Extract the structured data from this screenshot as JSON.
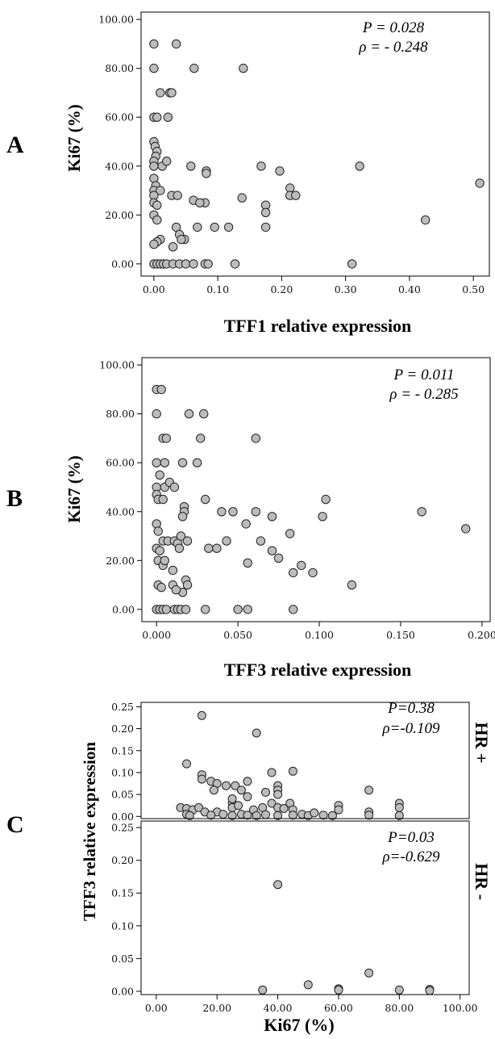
{
  "chart_data": [
    {
      "id": "A",
      "type": "scatter",
      "panel_label": "A",
      "xlabel": "TFF1 relative expression",
      "ylabel": "Ki67 (%)",
      "stat_p": "P = 0.028",
      "stat_rho": "ρ = - 0.248",
      "xlim": [
        -0.02,
        0.525
      ],
      "ylim": [
        -5,
        103
      ],
      "xticks": [
        0.0,
        0.1,
        0.2,
        0.3,
        0.4,
        0.5
      ],
      "xtick_labels": [
        "0.00",
        "0.10",
        "0.20",
        "0.30",
        "0.40",
        "0.50"
      ],
      "yticks": [
        0,
        20,
        40,
        60,
        80,
        100
      ],
      "ytick_labels": [
        "0.00",
        "20.00",
        "40.00",
        "60.00",
        "80.00",
        "100.00"
      ],
      "points": [
        [
          0.0,
          90
        ],
        [
          0.035,
          90
        ],
        [
          0.0,
          80
        ],
        [
          0.063,
          80
        ],
        [
          0.14,
          80
        ],
        [
          0.01,
          70
        ],
        [
          0.025,
          70
        ],
        [
          0.028,
          70
        ],
        [
          0.0,
          60
        ],
        [
          0.005,
          60
        ],
        [
          0.022,
          60
        ],
        [
          0.0,
          50
        ],
        [
          0.002,
          48
        ],
        [
          0.005,
          46
        ],
        [
          0.003,
          44
        ],
        [
          0.0,
          42
        ],
        [
          0.0,
          40
        ],
        [
          0.013,
          40
        ],
        [
          0.02,
          42
        ],
        [
          0.058,
          40
        ],
        [
          0.082,
          38
        ],
        [
          0.082,
          37
        ],
        [
          0.168,
          40
        ],
        [
          0.197,
          38
        ],
        [
          0.322,
          40
        ],
        [
          0.0,
          35
        ],
        [
          0.003,
          32
        ],
        [
          0.0,
          30
        ],
        [
          0.01,
          30
        ],
        [
          0.0,
          28
        ],
        [
          0.028,
          28
        ],
        [
          0.037,
          28
        ],
        [
          0.08,
          25
        ],
        [
          0.062,
          26
        ],
        [
          0.072,
          25
        ],
        [
          0.138,
          27
        ],
        [
          0.213,
          31
        ],
        [
          0.213,
          28
        ],
        [
          0.222,
          28
        ],
        [
          0.51,
          33
        ],
        [
          0.0,
          25
        ],
        [
          0.005,
          24
        ],
        [
          0.0,
          20
        ],
        [
          0.005,
          18
        ],
        [
          0.035,
          15
        ],
        [
          0.068,
          15
        ],
        [
          0.095,
          15
        ],
        [
          0.117,
          15
        ],
        [
          0.175,
          24
        ],
        [
          0.175,
          21
        ],
        [
          0.175,
          15
        ],
        [
          0.425,
          18
        ],
        [
          0.04,
          12
        ],
        [
          0.048,
          10
        ],
        [
          0.043,
          10
        ],
        [
          0.01,
          10
        ],
        [
          0.005,
          9
        ],
        [
          0.0,
          8
        ],
        [
          0.03,
          7
        ],
        [
          0.0,
          0
        ],
        [
          0.005,
          0
        ],
        [
          0.01,
          0
        ],
        [
          0.015,
          0
        ],
        [
          0.02,
          0
        ],
        [
          0.03,
          0
        ],
        [
          0.04,
          0
        ],
        [
          0.05,
          0
        ],
        [
          0.062,
          0
        ],
        [
          0.08,
          0
        ],
        [
          0.085,
          0
        ],
        [
          0.127,
          0
        ],
        [
          0.31,
          0
        ]
      ]
    },
    {
      "id": "B",
      "type": "scatter",
      "panel_label": "B",
      "xlabel": "TFF3 relative expression",
      "ylabel": "Ki67 (%)",
      "stat_p": "P = 0.011",
      "stat_rho": "ρ = - 0.285",
      "xlim": [
        -0.009,
        0.205
      ],
      "ylim": [
        -5,
        103
      ],
      "xticks": [
        0.0,
        0.05,
        0.1,
        0.15,
        0.2
      ],
      "xtick_labels": [
        "0.000",
        "0.050",
        "0.100",
        "0.150",
        "0.200"
      ],
      "yticks": [
        0,
        20,
        40,
        60,
        80,
        100
      ],
      "ytick_labels": [
        "0.00",
        "20.00",
        "40.00",
        "60.00",
        "80.00",
        "100.00"
      ],
      "points": [
        [
          0.0,
          90
        ],
        [
          0.003,
          90
        ],
        [
          0.0,
          80
        ],
        [
          0.02,
          80
        ],
        [
          0.029,
          80
        ],
        [
          0.004,
          70
        ],
        [
          0.006,
          70
        ],
        [
          0.027,
          70
        ],
        [
          0.061,
          70
        ],
        [
          0.0,
          60
        ],
        [
          0.005,
          60
        ],
        [
          0.016,
          60
        ],
        [
          0.025,
          60
        ],
        [
          0.0,
          50
        ],
        [
          0.005,
          50
        ],
        [
          0.008,
          52
        ],
        [
          0.011,
          50
        ],
        [
          0.002,
          55
        ],
        [
          0.0,
          47
        ],
        [
          0.001,
          45
        ],
        [
          0.004,
          45
        ],
        [
          0.017,
          42
        ],
        [
          0.017,
          40
        ],
        [
          0.016,
          38
        ],
        [
          0.03,
          45
        ],
        [
          0.04,
          40
        ],
        [
          0.047,
          40
        ],
        [
          0.061,
          40
        ],
        [
          0.071,
          38
        ],
        [
          0.082,
          31
        ],
        [
          0.102,
          38
        ],
        [
          0.104,
          45
        ],
        [
          0.163,
          40
        ],
        [
          0.19,
          33
        ],
        [
          0.0,
          35
        ],
        [
          0.001,
          32
        ],
        [
          0.004,
          28
        ],
        [
          0.007,
          28
        ],
        [
          0.011,
          28
        ],
        [
          0.013,
          27
        ],
        [
          0.015,
          30
        ],
        [
          0.019,
          28
        ],
        [
          0.014,
          25
        ],
        [
          0.032,
          25
        ],
        [
          0.037,
          25
        ],
        [
          0.043,
          28
        ],
        [
          0.055,
          35
        ],
        [
          0.064,
          28
        ],
        [
          0.071,
          24
        ],
        [
          0.075,
          21
        ],
        [
          0.056,
          19
        ],
        [
          0.0,
          25
        ],
        [
          0.002,
          24
        ],
        [
          0.001,
          20
        ],
        [
          0.004,
          18
        ],
        [
          0.005,
          20
        ],
        [
          0.01,
          16
        ],
        [
          0.018,
          12
        ],
        [
          0.019,
          10
        ],
        [
          0.016,
          7
        ],
        [
          0.084,
          15
        ],
        [
          0.089,
          18
        ],
        [
          0.096,
          15
        ],
        [
          0.12,
          10
        ],
        [
          0.001,
          10
        ],
        [
          0.003,
          9
        ],
        [
          0.01,
          10
        ],
        [
          0.012,
          8
        ],
        [
          0.0,
          0
        ],
        [
          0.002,
          0
        ],
        [
          0.004,
          0
        ],
        [
          0.006,
          0
        ],
        [
          0.011,
          0
        ],
        [
          0.013,
          0
        ],
        [
          0.015,
          0
        ],
        [
          0.018,
          0
        ],
        [
          0.03,
          0
        ],
        [
          0.05,
          0
        ],
        [
          0.056,
          0
        ],
        [
          0.084,
          0
        ]
      ]
    },
    {
      "id": "C-top",
      "type": "scatter",
      "panel_label": "C",
      "side_label": "HR +",
      "xlabel": "Ki67 (%)",
      "ylabel": "TFF3 relative expression",
      "stat_p": "P=0.38",
      "stat_rho": "ρ=-0.109",
      "xlim": [
        -5,
        103
      ],
      "ylim": [
        -0.005,
        0.26
      ],
      "yticks": [
        0.0,
        0.05,
        0.1,
        0.15,
        0.2,
        0.25
      ],
      "ytick_labels": [
        "0.00",
        "0.05",
        "0.10",
        "0.15",
        "0.20",
        "0.25"
      ],
      "points": [
        [
          15,
          0.23
        ],
        [
          33,
          0.19
        ],
        [
          10,
          0.12
        ],
        [
          15,
          0.095
        ],
        [
          15,
          0.085
        ],
        [
          18,
          0.08
        ],
        [
          20,
          0.075
        ],
        [
          23,
          0.07
        ],
        [
          26,
          0.07
        ],
        [
          30,
          0.08
        ],
        [
          36,
          0.055
        ],
        [
          38,
          0.1
        ],
        [
          40,
          0.07
        ],
        [
          40,
          0.06
        ],
        [
          40,
          0.05
        ],
        [
          45,
          0.103
        ],
        [
          70,
          0.06
        ],
        [
          8,
          0.02
        ],
        [
          10,
          0.018
        ],
        [
          12,
          0.015
        ],
        [
          14,
          0.02
        ],
        [
          16,
          0.01
        ],
        [
          19,
          0.06
        ],
        [
          20,
          0.01
        ],
        [
          22,
          0.005
        ],
        [
          25,
          0.03
        ],
        [
          25,
          0.04
        ],
        [
          25,
          0.02
        ],
        [
          27,
          0.025
        ],
        [
          28,
          0.06
        ],
        [
          30,
          0.045
        ],
        [
          32,
          0.015
        ],
        [
          35,
          0.02
        ],
        [
          38,
          0.03
        ],
        [
          40,
          0.02
        ],
        [
          42,
          0.018
        ],
        [
          44,
          0.03
        ],
        [
          45,
          0.015
        ],
        [
          10,
          0.005
        ],
        [
          11,
          0.002
        ],
        [
          18,
          0.003
        ],
        [
          25,
          0.002
        ],
        [
          28,
          0.005
        ],
        [
          30,
          0.003
        ],
        [
          33,
          0.002
        ],
        [
          36,
          0.004
        ],
        [
          40,
          0.002
        ],
        [
          45,
          0.003
        ],
        [
          48,
          0.005
        ],
        [
          50,
          0.002
        ],
        [
          52,
          0.008
        ],
        [
          55,
          0.003
        ],
        [
          58,
          0.002
        ],
        [
          60,
          0.025
        ],
        [
          60,
          0.015
        ],
        [
          70,
          0.01
        ],
        [
          70,
          0.003
        ],
        [
          80,
          0.03
        ],
        [
          80,
          0.02
        ],
        [
          80,
          0.002
        ]
      ]
    },
    {
      "id": "C-bottom",
      "type": "scatter",
      "side_label": "HR -",
      "xlabel": "Ki67 (%)",
      "stat_p": "P=0.03",
      "stat_rho": "ρ=-0.629",
      "xlim": [
        -5,
        103
      ],
      "ylim": [
        -0.005,
        0.26
      ],
      "xticks": [
        0,
        20,
        40,
        60,
        80,
        100
      ],
      "xtick_labels": [
        "0.00",
        "20.00",
        "40.00",
        "60.00",
        "80.00",
        "100.00"
      ],
      "yticks": [
        0.0,
        0.05,
        0.1,
        0.15,
        0.2,
        0.25
      ],
      "ytick_labels": [
        "0.00",
        "0.05",
        "0.10",
        "0.15",
        "0.20",
        "0.25"
      ],
      "points": [
        [
          40,
          0.163
        ],
        [
          70,
          0.028
        ],
        [
          50,
          0.01
        ],
        [
          35,
          0.002
        ],
        [
          60,
          0.004
        ],
        [
          60,
          0.002
        ],
        [
          80,
          0.002
        ],
        [
          90,
          0.003
        ],
        [
          90,
          0.001
        ]
      ]
    }
  ]
}
